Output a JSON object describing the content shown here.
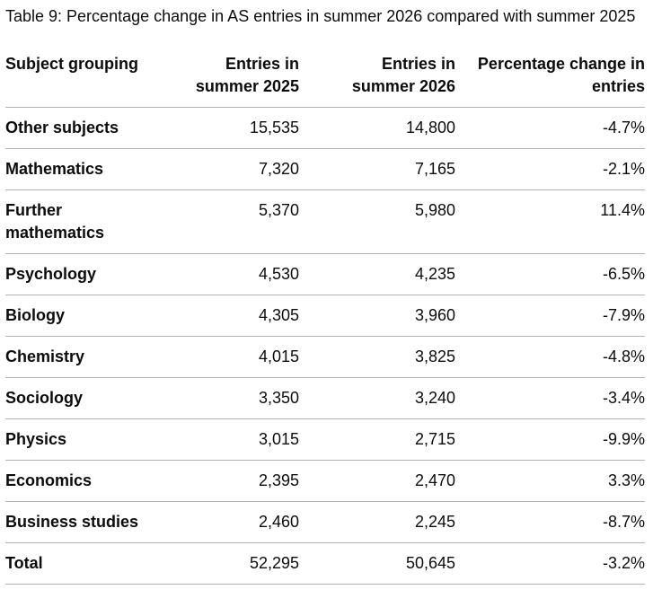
{
  "table": {
    "caption": "Table 9: Percentage change in AS entries in summer 2026 compared with summer 2025",
    "headers": [
      "Subject grouping",
      "Entries in summer 2025",
      "Entries in summer 2026",
      "Percentage change in entries"
    ],
    "rows": [
      [
        "Other subjects",
        "15,535",
        "14,800",
        "-4.7%"
      ],
      [
        "Mathematics",
        "7,320",
        "7,165",
        "-2.1%"
      ],
      [
        "Further mathematics",
        "5,370",
        "5,980",
        "11.4%"
      ],
      [
        "Psychology",
        "4,530",
        "4,235",
        "-6.5%"
      ],
      [
        "Biology",
        "4,305",
        "3,960",
        "-7.9%"
      ],
      [
        "Chemistry",
        "4,015",
        "3,825",
        "-4.8%"
      ],
      [
        "Sociology",
        "3,350",
        "3,240",
        "-3.4%"
      ],
      [
        "Physics",
        "3,015",
        "2,715",
        "-9.9%"
      ],
      [
        "Economics",
        "2,395",
        "2,470",
        "3.3%"
      ],
      [
        "Business studies",
        "2,460",
        "2,245",
        "-8.7%"
      ],
      [
        "Total",
        "52,295",
        "50,645",
        "-3.2%"
      ]
    ]
  }
}
